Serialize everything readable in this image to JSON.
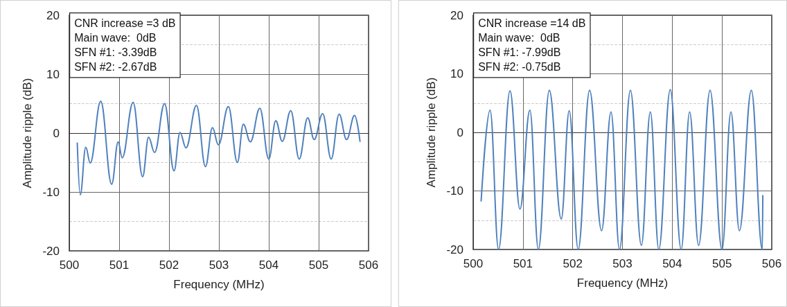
{
  "chart_data": [
    {
      "type": "line",
      "xlabel": "Frequency (MHz)",
      "ylabel": "Amplitude ripple (dB)",
      "annotations": [
        "CNR increase =3 dB",
        "Main wave:  0dB",
        "SFN #1: -3.39dB",
        "SFN #2: -2.67dB"
      ],
      "x": [
        500.16,
        500.22,
        500.33,
        500.42,
        500.63,
        500.85,
        500.98,
        501.06,
        501.28,
        501.47,
        501.59,
        501.71,
        501.91,
        502.1,
        502.22,
        502.34,
        502.55,
        502.73,
        502.87,
        502.99,
        503.19,
        503.37,
        503.49,
        503.63,
        503.82,
        504.0,
        504.14,
        504.27,
        504.44,
        504.61,
        504.78,
        504.91,
        505.08,
        505.25,
        505.41,
        505.56,
        505.72,
        505.83
      ],
      "values": [
        -1.6,
        -10.5,
        -2.4,
        -5.1,
        5.4,
        -8.7,
        -1.5,
        -4.2,
        5.2,
        -7.4,
        -0.7,
        -3.3,
        5.0,
        -6.4,
        0.1,
        -2.5,
        4.7,
        -5.7,
        0.9,
        -2.0,
        4.5,
        -5.0,
        1.5,
        -1.5,
        4.2,
        -4.4,
        2.1,
        -1.4,
        3.8,
        -4.4,
        2.6,
        -1.1,
        3.3,
        -4.4,
        3.2,
        -1.1,
        3.0,
        -1.5
      ],
      "color": "#4f81bd",
      "marker": "none",
      "xlim": [
        500,
        506
      ],
      "ylim": [
        -20,
        20
      ],
      "xticks": [
        500,
        501,
        502,
        503,
        504,
        505,
        506
      ],
      "yticks": [
        -20,
        -10,
        0,
        10,
        20
      ],
      "grid": true
    },
    {
      "type": "line",
      "xlabel": "Frequency (MHz)",
      "ylabel": "Amplitude ripple (dB)",
      "annotations": [
        "CNR increase =14 dB",
        "Main wave:  0dB",
        "SFN #1: -7.99dB",
        "SFN #2: -0.75dB"
      ],
      "x": [
        500.16,
        500.34,
        500.51,
        500.74,
        500.94,
        501.14,
        501.31,
        501.53,
        501.77,
        501.93,
        502.11,
        502.34,
        502.58,
        502.77,
        502.94,
        503.16,
        503.38,
        503.56,
        503.73,
        503.96,
        504.18,
        504.35,
        504.53,
        504.76,
        505.0,
        505.18,
        505.35,
        505.59,
        505.81,
        505.82
      ],
      "values": [
        -11.8,
        3.8,
        -20,
        7.1,
        -13.1,
        3.8,
        -20,
        7.2,
        -14.8,
        3.7,
        -20,
        7.2,
        -16.8,
        3.5,
        -20,
        7.2,
        -19.3,
        3.5,
        -20,
        7.3,
        -20,
        3.5,
        -19.3,
        7.2,
        -20,
        3.5,
        -16.8,
        7.2,
        -20,
        -10.7
      ],
      "color": "#4f81bd",
      "marker": "none",
      "xlim": [
        500,
        506
      ],
      "ylim": [
        -20,
        20
      ],
      "xticks": [
        500,
        501,
        502,
        503,
        504,
        505,
        506
      ],
      "yticks": [
        -20,
        -10,
        0,
        10,
        20
      ],
      "grid": true
    }
  ]
}
